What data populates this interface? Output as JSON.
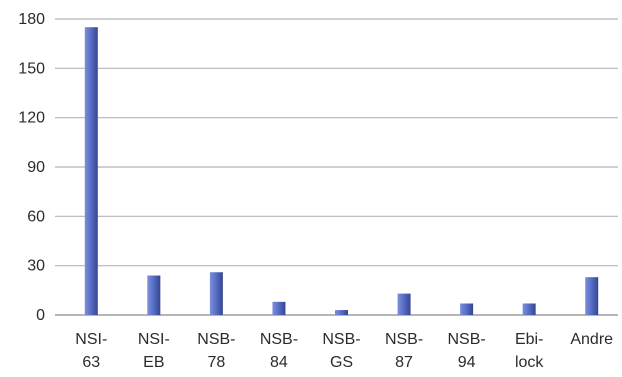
{
  "chart_data": {
    "type": "bar",
    "title": "",
    "xlabel": "",
    "ylabel": "",
    "ylim": [
      0,
      180
    ],
    "yticks": [
      0,
      30,
      60,
      90,
      120,
      150,
      180
    ],
    "grid": true,
    "legend": "none",
    "bar_color": "#4a5fb0",
    "categories": [
      [
        "NSI-",
        "63"
      ],
      [
        "NSI-",
        "EB"
      ],
      [
        "NSB-",
        "78"
      ],
      [
        "NSB-",
        "84"
      ],
      [
        "NSB-",
        "GS"
      ],
      [
        "NSB-",
        "87"
      ],
      [
        "NSB-",
        "94"
      ],
      [
        "Ebi-",
        "lock"
      ],
      [
        "Andre"
      ]
    ],
    "values": [
      175,
      24,
      26,
      8,
      3,
      13,
      7,
      7,
      23
    ]
  }
}
